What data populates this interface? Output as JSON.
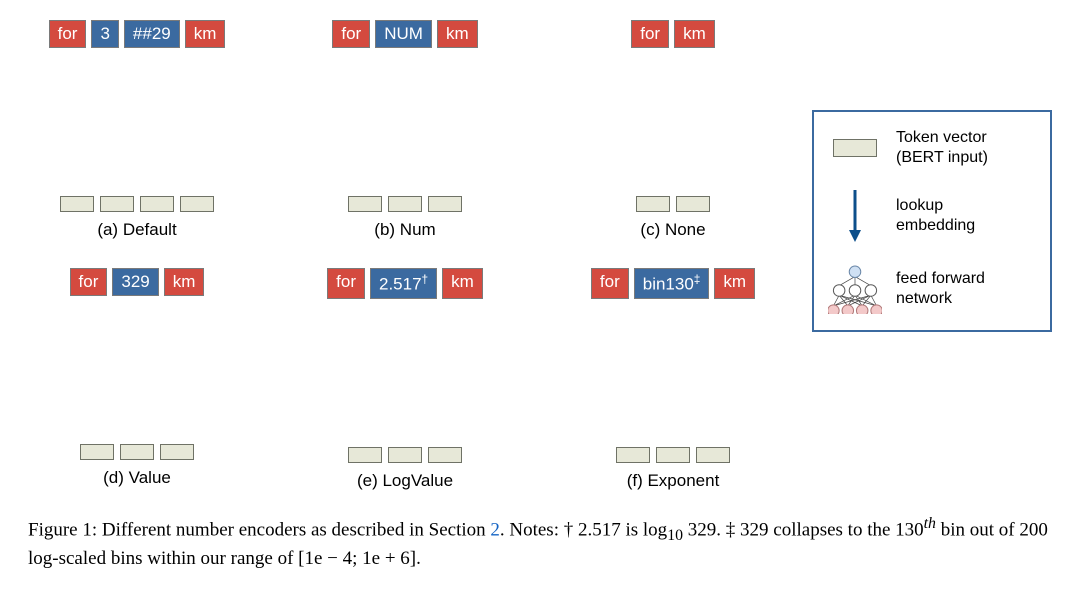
{
  "colors": {
    "token_red": "#d44a3f",
    "token_blue": "#3b6aa0",
    "arrow": "#0d4f8b",
    "vector_fill": "#e7e8d8",
    "vector_border": "#6f7266",
    "legend_border": "#3b6aa0",
    "nn_input_fill": "#cfe0f3",
    "nn_hidden_fill": "#ffffff",
    "nn_output_fill": "#f3c9c9",
    "section_link": "#1464c4"
  },
  "panels": {
    "a": {
      "tokens": [
        {
          "text": "for",
          "color": "red"
        },
        {
          "text": "3",
          "color": "blue"
        },
        {
          "text": "##29",
          "color": "blue"
        },
        {
          "text": "km",
          "color": "red"
        }
      ],
      "label": "(a) Default",
      "outputs": 4,
      "type": "arrows"
    },
    "b": {
      "tokens": [
        {
          "text": "for",
          "color": "red"
        },
        {
          "text": "NUM",
          "color": "blue"
        },
        {
          "text": "km",
          "color": "red"
        }
      ],
      "label": "(b) Num",
      "outputs": 3,
      "type": "arrows"
    },
    "c": {
      "tokens": [
        {
          "text": "for",
          "color": "red"
        },
        {
          "text": "km",
          "color": "red"
        }
      ],
      "label": "(c) None",
      "outputs": 2,
      "type": "arrows"
    },
    "d": {
      "tokens": [
        {
          "text": "for",
          "color": "red"
        },
        {
          "text": "329",
          "color": "blue"
        },
        {
          "text": "km",
          "color": "red"
        }
      ],
      "label": "(d) Value",
      "outputs": 3,
      "type": "nn"
    },
    "e": {
      "tokens": [
        {
          "text": "for",
          "color": "red"
        },
        {
          "text_html": "2.517<sup>†</sup>",
          "color": "blue"
        },
        {
          "text": "km",
          "color": "red"
        }
      ],
      "label": "(e) LogValue",
      "outputs": 3,
      "type": "nn"
    },
    "f": {
      "tokens": [
        {
          "text": "for",
          "color": "red"
        },
        {
          "text_html": "bin130<sup>‡</sup>",
          "color": "blue"
        },
        {
          "text": "km",
          "color": "red"
        }
      ],
      "label": "(f) Exponent",
      "outputs": 3,
      "type": "arrows"
    }
  },
  "legend": {
    "row1": "Token vector\n(BERT input)",
    "row2": "lookup\nembedding",
    "row3": "feed forward\nnetwork"
  },
  "caption": {
    "prefix": "Figure 1: Different number encoders as described in Section ",
    "section": "2",
    "rest": ". Notes: † 2.517 is log",
    "logsub": "10",
    "after_log": " 329. ‡ 329 collapses to the 130",
    "th": "th",
    "tail": " bin out of 200 log-scaled bins within our range of [1e − 4; 1e + 6]."
  }
}
